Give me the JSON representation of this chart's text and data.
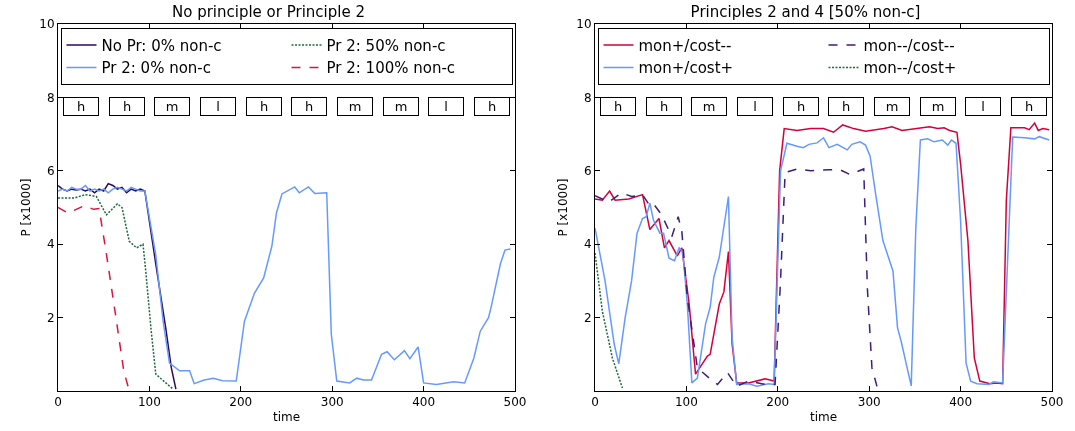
{
  "chart_data": [
    {
      "type": "line",
      "title": "No principle or Principle 2",
      "xlabel": "time",
      "ylabel": "P [x1000]",
      "xlim": [
        0,
        500
      ],
      "ylim": [
        0,
        10
      ],
      "xticks": [
        0,
        100,
        200,
        300,
        400,
        500
      ],
      "yticks": [
        2,
        4,
        6,
        8,
        10
      ],
      "grid": false,
      "legend": "top",
      "annotations": [
        {
          "text": "h",
          "x": 25,
          "y": 7.75
        },
        {
          "text": "h",
          "x": 75,
          "y": 7.75
        },
        {
          "text": "m",
          "x": 125,
          "y": 7.75
        },
        {
          "text": "l",
          "x": 175,
          "y": 7.75
        },
        {
          "text": "h",
          "x": 225,
          "y": 7.75
        },
        {
          "text": "h",
          "x": 275,
          "y": 7.75
        },
        {
          "text": "m",
          "x": 325,
          "y": 7.75
        },
        {
          "text": "m",
          "x": 375,
          "y": 7.75
        },
        {
          "text": "l",
          "x": 425,
          "y": 7.75
        },
        {
          "text": "h",
          "x": 475,
          "y": 7.75
        }
      ],
      "series": [
        {
          "name": "No Pr: 0% non-c",
          "color": "#2e0854",
          "line_style": "solid",
          "x": [
            0,
            5,
            10,
            15,
            20,
            25,
            30,
            35,
            40,
            45,
            50,
            55,
            60,
            65,
            70,
            75,
            80,
            85,
            90,
            95,
            107,
            118,
            124,
            129
          ],
          "values": [
            5.6,
            5.5,
            5.45,
            5.5,
            5.48,
            5.5,
            5.45,
            5.5,
            5.4,
            5.5,
            5.45,
            5.65,
            5.6,
            5.5,
            5.55,
            5.4,
            5.5,
            5.45,
            5.5,
            5.45,
            3.46,
            1.69,
            0.63,
            0.05
          ]
        },
        {
          "name": "Pr 2: 0% non-c",
          "color": "#6699ff",
          "line_style": "solid",
          "x": [
            0,
            5,
            10,
            15,
            20,
            25,
            30,
            35,
            40,
            45,
            50,
            55,
            60,
            65,
            70,
            75,
            80,
            85,
            90,
            95,
            107,
            115,
            122,
            133,
            144,
            149,
            160,
            170,
            180,
            195,
            204,
            215,
            225,
            234,
            239,
            245,
            259,
            264,
            274,
            281,
            294,
            299,
            305,
            319,
            327,
            334,
            343,
            354,
            360,
            368,
            379,
            385,
            394,
            400,
            414,
            433,
            445,
            455,
            462,
            471,
            474,
            484,
            489,
            495
          ],
          "values": [
            5.45,
            5.5,
            5.45,
            5.55,
            5.5,
            5.5,
            5.6,
            5.45,
            5.5,
            5.45,
            5.5,
            5.4,
            5.5,
            5.55,
            5.5,
            5.45,
            5.55,
            5.5,
            5.45,
            5.45,
            3.7,
            1.9,
            0.76,
            0.55,
            0.55,
            0.2,
            0.3,
            0.35,
            0.28,
            0.27,
            1.9,
            2.67,
            3.08,
            3.95,
            4.85,
            5.37,
            5.56,
            5.4,
            5.56,
            5.38,
            5.4,
            1.55,
            0.27,
            0.22,
            0.35,
            0.3,
            0.3,
            1.0,
            1.07,
            0.85,
            1.1,
            0.88,
            1.2,
            0.22,
            0.18,
            0.25,
            0.22,
            0.9,
            1.63,
            2.0,
            2.3,
            3.46,
            3.84,
            3.87
          ]
        },
        {
          "name": "Pr 2: 50% non-c",
          "color": "#1a6b3c",
          "line_style": "dotted",
          "x": [
            0,
            18,
            30,
            42,
            53,
            65,
            70,
            78,
            86,
            93,
            96,
            102,
            107,
            118,
            126
          ],
          "values": [
            5.26,
            5.26,
            5.35,
            5.3,
            4.8,
            5.1,
            5.0,
            4.08,
            3.9,
            4.0,
            3.27,
            1.63,
            0.46,
            0.22,
            0.05
          ]
        },
        {
          "name": "Pr 2: 100% non-c",
          "color": "#dc143c",
          "line_style": "dashed",
          "x": [
            0,
            11,
            29,
            39,
            45,
            53,
            64,
            72,
            78
          ],
          "values": [
            5.0,
            4.85,
            5.05,
            4.95,
            4.97,
            3.73,
            1.9,
            0.54,
            0
          ]
        }
      ]
    },
    {
      "type": "line",
      "title": "Principles 2 and 4 [50% non-c]",
      "xlabel": "time",
      "ylabel": "P [x1000]",
      "xlim": [
        0,
        500
      ],
      "ylim": [
        0,
        10
      ],
      "xticks": [
        0,
        100,
        200,
        300,
        400,
        500
      ],
      "yticks": [
        2,
        4,
        6,
        8,
        10
      ],
      "grid": false,
      "legend": "top",
      "annotations": [
        {
          "text": "h",
          "x": 25,
          "y": 7.75
        },
        {
          "text": "h",
          "x": 75,
          "y": 7.75
        },
        {
          "text": "m",
          "x": 125,
          "y": 7.75
        },
        {
          "text": "l",
          "x": 175,
          "y": 7.75
        },
        {
          "text": "h",
          "x": 225,
          "y": 7.75
        },
        {
          "text": "h",
          "x": 275,
          "y": 7.75
        },
        {
          "text": "m",
          "x": 325,
          "y": 7.75
        },
        {
          "text": "m",
          "x": 375,
          "y": 7.75
        },
        {
          "text": "l",
          "x": 425,
          "y": 7.75
        },
        {
          "text": "h",
          "x": 475,
          "y": 7.75
        }
      ],
      "series": [
        {
          "name": "mon+/cost--",
          "color": "#d4003a",
          "line_style": "solid",
          "x": [
            0,
            8,
            16,
            22,
            37,
            52,
            60,
            70,
            76,
            81,
            90,
            95,
            103,
            110,
            123,
            126,
            136,
            141,
            146,
            150,
            155,
            168,
            186,
            196,
            202,
            207,
            221,
            236,
            250,
            261,
            271,
            283,
            296,
            316,
            325,
            336,
            352,
            366,
            375,
            382,
            388,
            396,
            400,
            408,
            415,
            421,
            432,
            439,
            446,
            450,
            455,
            470,
            475,
            481,
            485,
            490,
            497
          ],
          "values": [
            5.23,
            5.2,
            5.45,
            5.2,
            5.23,
            5.35,
            4.4,
            4.7,
            3.9,
            4.1,
            3.68,
            3.9,
            2.37,
            0.46,
            0.95,
            1.0,
            2.37,
            2.7,
            3.8,
            1.28,
            0.22,
            0.22,
            0.33,
            0.27,
            6.0,
            7.15,
            7.1,
            7.15,
            7.15,
            7.05,
            7.25,
            7.15,
            7.08,
            7.15,
            7.2,
            7.1,
            7.15,
            7.2,
            7.15,
            7.17,
            7.1,
            7.05,
            6.18,
            4.1,
            0.9,
            0.27,
            0.2,
            0.22,
            0.2,
            5.18,
            7.17,
            7.17,
            7.12,
            7.3,
            7.1,
            7.15,
            7.12
          ]
        },
        {
          "name": "mon+/cost+",
          "color": "#6699ff",
          "line_style": "solid",
          "x": [
            0,
            11,
            21,
            26,
            33,
            40,
            46,
            52,
            56,
            60,
            64,
            71,
            75,
            81,
            87,
            92,
            96,
            101,
            106,
            112,
            121,
            126,
            130,
            136,
            146,
            150,
            155,
            168,
            177,
            190,
            196,
            203,
            210,
            221,
            228,
            234,
            243,
            250,
            256,
            265,
            276,
            281,
            290,
            296,
            301,
            307,
            315,
            326,
            331,
            335,
            346,
            351,
            356,
            364,
            371,
            380,
            386,
            390,
            395,
            400,
            406,
            411,
            418,
            431,
            436,
            446,
            452,
            457,
            470,
            481,
            486,
            497
          ],
          "values": [
            4.44,
            3.0,
            1.28,
            0.74,
            2.0,
            3.0,
            4.3,
            4.7,
            4.75,
            5.12,
            4.65,
            4.3,
            4.3,
            3.62,
            3.55,
            3.9,
            3.8,
            2.37,
            0.22,
            0.35,
            1.83,
            2.28,
            3.1,
            3.65,
            5.3,
            1.45,
            0.18,
            0.2,
            0.13,
            0.2,
            0.18,
            6.0,
            6.75,
            6.67,
            6.63,
            6.72,
            6.76,
            6.9,
            6.63,
            6.72,
            6.57,
            6.72,
            6.79,
            6.7,
            6.4,
            5.37,
            4.1,
            3.27,
            1.72,
            1.35,
            0.14,
            4.44,
            6.84,
            6.87,
            6.79,
            6.84,
            6.7,
            6.84,
            6.75,
            4.63,
            0.76,
            0.27,
            0.2,
            0.18,
            0.25,
            0.22,
            3.9,
            6.92,
            6.9,
            6.87,
            6.93,
            6.84
          ]
        },
        {
          "name": "mon--/cost--",
          "color": "#3b1f7a",
          "line_style": "dashed",
          "x": [
            0,
            15,
            29,
            40,
            52,
            60,
            64,
            73,
            84,
            91,
            95,
            101,
            112,
            125,
            134,
            145,
            155,
            168,
            186,
            197,
            203,
            208,
            221,
            236,
            256,
            268,
            279,
            294,
            298,
            303,
            309
          ],
          "values": [
            5.32,
            5.15,
            5.4,
            5.3,
            5.35,
            5.05,
            5.1,
            4.8,
            4.2,
            4.75,
            4.35,
            2.55,
            0.63,
            0.35,
            0.18,
            0.5,
            0.13,
            0.27,
            0.18,
            0.18,
            3.0,
            5.95,
            6.05,
            6.0,
            6.03,
            6.03,
            5.9,
            6.05,
            2.8,
            0.63,
            0.08
          ]
        },
        {
          "name": "mon--/cost+",
          "color": "#1a6b3c",
          "line_style": "dotted",
          "x": [
            0,
            8,
            19,
            30
          ],
          "values": [
            3.76,
            2.18,
            0.9,
            0.08
          ]
        }
      ]
    }
  ]
}
